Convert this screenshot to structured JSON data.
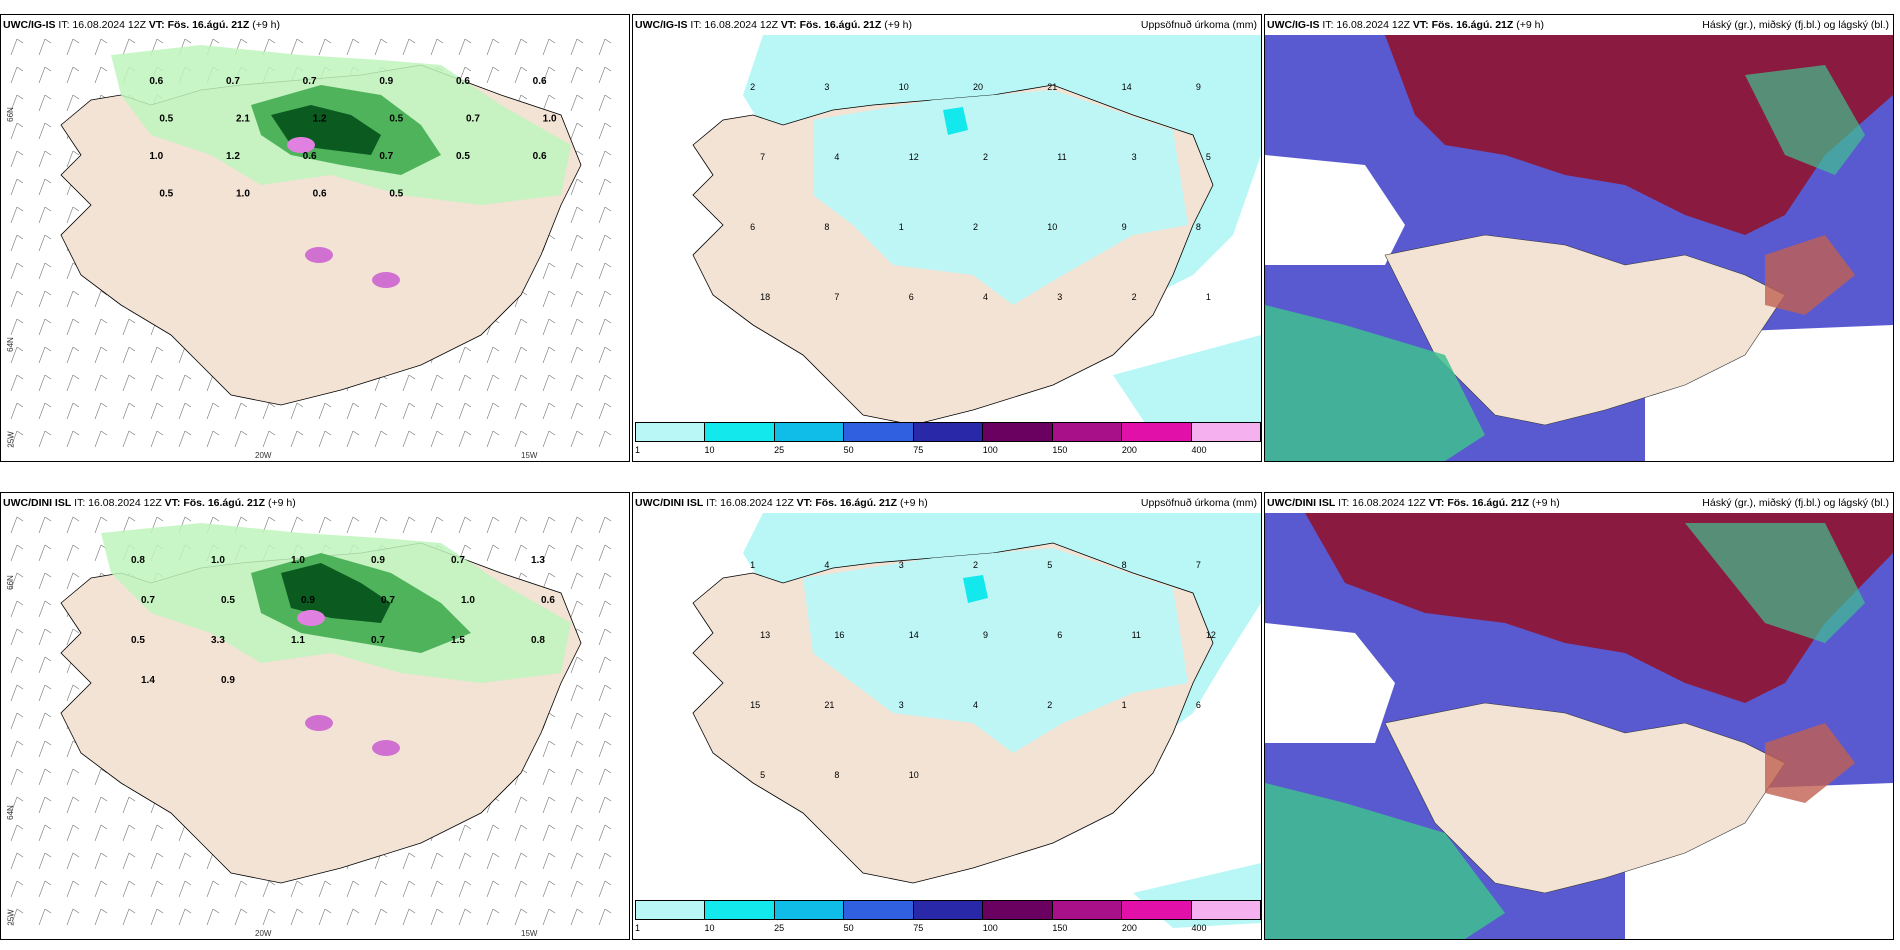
{
  "panels": [
    {
      "model": "UWC/IG-IS",
      "it": "IT: 16.08.2024 12Z",
      "vt": "VT: Fös. 16.ágú. 21Z",
      "lead": "(+9 h)",
      "right": ""
    },
    {
      "model": "UWC/IG-IS",
      "it": "IT: 16.08.2024 12Z",
      "vt": "VT: Fös. 16.ágú. 21Z",
      "lead": "(+9 h)",
      "right": "Uppsöfnuð úrkoma (mm)"
    },
    {
      "model": "UWC/IG-IS",
      "it": "IT: 16.08.2024 12Z",
      "vt": "VT: Fös. 16.ágú. 21Z",
      "lead": "(+9 h)",
      "right": "Háský (gr.), miðský (fj.bl.) og lágský (bl.)"
    },
    {
      "model": "UWC/DINI ISL",
      "it": "IT: 16.08.2024 12Z",
      "vt": "VT: Fös. 16.ágú. 21Z",
      "lead": "(+9 h)",
      "right": ""
    },
    {
      "model": "UWC/DINI ISL",
      "it": "IT: 16.08.2024 12Z",
      "vt": "VT: Fös. 16.ágú. 21Z",
      "lead": "(+9 h)",
      "right": "Uppsöfnuð úrkoma (mm)"
    },
    {
      "model": "UWC/DINI ISL",
      "it": "IT: 16.08.2024 12Z",
      "vt": "VT: Fös. 16.ágú. 21Z",
      "lead": "(+9 h)",
      "right": "Háský (gr.), miðský (fj.bl.) og lágský (bl.)"
    }
  ],
  "axis_labels": {
    "lat66": "66N",
    "lat64": "64N",
    "lon25": "25W",
    "lon20": "20W",
    "lon15": "15W"
  },
  "colorbar": {
    "labels": [
      "1",
      "10",
      "25",
      "50",
      "75",
      "100",
      "150",
      "200",
      "400"
    ],
    "colors": [
      "#b9f7f7",
      "#13e8ec",
      "#10bde8",
      "#3060e0",
      "#2828a8",
      "#6a0060",
      "#a8108a",
      "#e010a8",
      "#f5b0f0"
    ]
  },
  "colors": {
    "land": "#f2e3d5",
    "precip_light": "#b9f7f7",
    "gust_light": "#bff5bd",
    "gust_mid": "#3aa84a",
    "gust_dark": "#0b5a20",
    "high_cloud": "#8b1a40",
    "mid_cloud": "#5a5ad0",
    "low_cloud": "#40c090"
  },
  "gust_values_top": [
    "0.6",
    "0.7",
    "0.7",
    "0.9",
    "0.6",
    "0.6",
    "0.5",
    "2.1",
    "1.2",
    "0.5",
    "0.7",
    "1.0",
    "1.0",
    "1.2",
    "0.6",
    "0.7",
    "0.5",
    "0.6",
    "0.5",
    "1.0",
    "0.6",
    "0.5"
  ],
  "precip_values_top": [
    "2",
    "3",
    "10",
    "20",
    "21",
    "14",
    "9",
    "7",
    "4",
    "12",
    "2",
    "11",
    "3",
    "5",
    "6",
    "8",
    "1",
    "2",
    "10",
    "9",
    "8",
    "18",
    "7",
    "6",
    "4",
    "3",
    "2",
    "1"
  ],
  "gust_values_bottom": [
    "0.8",
    "1.0",
    "1.0",
    "0.9",
    "0.7",
    "1.3",
    "0.7",
    "0.5",
    "0.9",
    "0.7",
    "1.0",
    "0.6",
    "0.5",
    "3.3",
    "1.1",
    "0.7",
    "1.5",
    "0.8",
    "1.4",
    "0.9"
  ],
  "precip_values_bottom": [
    "1",
    "4",
    "3",
    "2",
    "5",
    "8",
    "7",
    "13",
    "16",
    "14",
    "9",
    "6",
    "11",
    "12",
    "15",
    "21",
    "3",
    "4",
    "2",
    "1",
    "6",
    "5",
    "8",
    "10"
  ]
}
